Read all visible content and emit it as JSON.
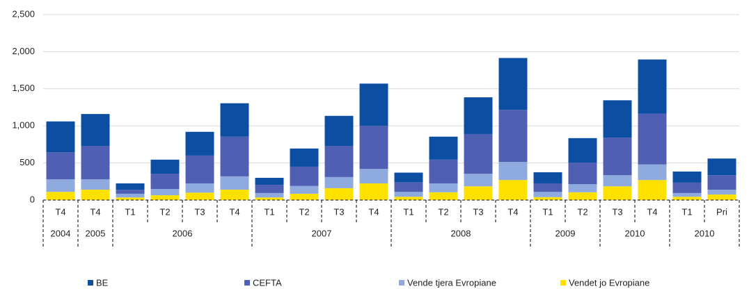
{
  "chart_data": {
    "type": "stacked_bar",
    "groups": [
      {
        "label": "2004",
        "categories": [
          "T4"
        ]
      },
      {
        "label": "2005",
        "categories": [
          "T4"
        ]
      },
      {
        "label": "2006",
        "categories": [
          "T1",
          "T2",
          "T3",
          "T4"
        ]
      },
      {
        "label": "2007",
        "categories": [
          "T1",
          "T2",
          "T3",
          "T4"
        ]
      },
      {
        "label": "2008",
        "categories": [
          "T1",
          "T2",
          "T3",
          "T4"
        ]
      },
      {
        "label": "2009",
        "categories": [
          "T1",
          "T2"
        ]
      },
      {
        "label": "2010",
        "categories": [
          "T3",
          "T4"
        ]
      },
      {
        "label": "2010",
        "categories": [
          "T1",
          "Pri"
        ]
      }
    ],
    "series": [
      {
        "name": "BE",
        "color": "#0b4ea2",
        "values": [
          415,
          430,
          85,
          190,
          320,
          450,
          95,
          245,
          405,
          570,
          130,
          310,
          495,
          700,
          150,
          330,
          505,
          730,
          150,
          225
        ]
      },
      {
        "name": "CEFTA",
        "color": "#4f5fb3",
        "values": [
          365,
          450,
          55,
          205,
          375,
          535,
          110,
          260,
          420,
          580,
          130,
          320,
          535,
          700,
          115,
          290,
          505,
          685,
          140,
          195
        ]
      },
      {
        "name": "Vende tjera Evropiane",
        "color": "#8eaadf",
        "values": [
          170,
          140,
          50,
          85,
          125,
          180,
          60,
          105,
          150,
          195,
          65,
          120,
          170,
          245,
          70,
          110,
          150,
          210,
          50,
          65
        ]
      },
      {
        "name": "Vendet jo Evropiane",
        "color": "#ffe100",
        "values": [
          110,
          140,
          35,
          65,
          100,
          140,
          35,
          85,
          160,
          225,
          45,
          105,
          185,
          270,
          40,
          105,
          185,
          270,
          45,
          75
        ]
      }
    ],
    "stack_order": "bottom-up from last series",
    "ylim": [
      0,
      2500
    ],
    "yticks": [
      0,
      {
        "value": 500,
        "label": "500"
      },
      {
        "value": 1000,
        "label": "1,000"
      },
      {
        "value": 1500,
        "label": "1,500"
      },
      {
        "value": 2000,
        "label": "2,000"
      },
      {
        "value": 2500,
        "label": "2,500"
      }
    ],
    "grid": true,
    "legend": "bottom"
  }
}
